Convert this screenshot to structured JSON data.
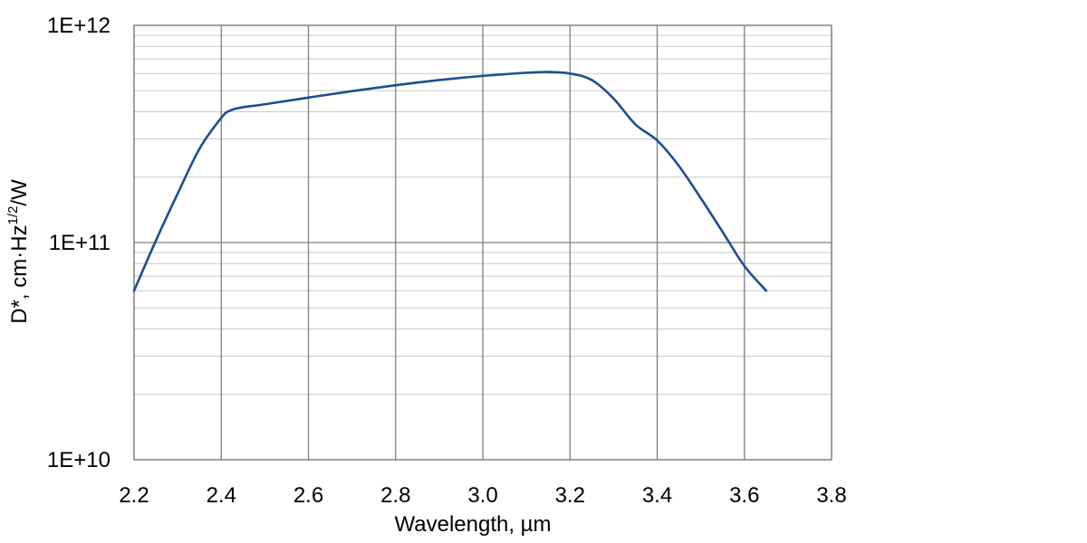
{
  "chart_data": {
    "type": "line",
    "title": "",
    "xlabel": "Wavelength, µm",
    "ylabel": {
      "prefix": "D*, cm·Hz",
      "superscript": "1/2",
      "suffix": "/W"
    },
    "xlim": [
      2.2,
      3.8
    ],
    "ylim": [
      10000000000.0,
      1000000000000.0
    ],
    "yscale": "log",
    "x_ticks": [
      2.2,
      2.4,
      2.6,
      2.8,
      3.0,
      3.2,
      3.4,
      3.6,
      3.8
    ],
    "x_tick_labels": [
      "2.2",
      "2.4",
      "2.6",
      "2.8",
      "3.0",
      "3.2",
      "3.4",
      "3.6",
      "3.8"
    ],
    "y_ticks": [
      10000000000.0,
      100000000000.0,
      1000000000000.0
    ],
    "y_tick_labels": [
      "1E+10",
      "1E+11",
      "1E+12"
    ],
    "grid": true,
    "legend": "none",
    "colors": {
      "line": "#1f4e8c",
      "major_grid": "#7f7f7f",
      "minor_grid": "#c8c8c8",
      "frame": "#7f7f7f"
    },
    "series": [
      {
        "x": [
          2.2,
          2.25,
          2.3,
          2.35,
          2.4,
          2.42,
          2.45,
          2.5,
          2.6,
          2.7,
          2.8,
          2.9,
          3.0,
          3.1,
          3.15,
          3.2,
          3.25,
          3.3,
          3.35,
          3.4,
          3.45,
          3.5,
          3.55,
          3.6,
          3.65
        ],
        "y": [
          60000000000.0,
          102000000000.0,
          168000000000.0,
          270000000000.0,
          375000000000.0,
          405000000000.0,
          420000000000.0,
          433000000000.0,
          465000000000.0,
          498000000000.0,
          530000000000.0,
          560000000000.0,
          585000000000.0,
          605000000000.0,
          610000000000.0,
          600000000000.0,
          560000000000.0,
          460000000000.0,
          350000000000.0,
          295000000000.0,
          225000000000.0,
          160000000000.0,
          112000000000.0,
          78000000000.0,
          60000000000.0
        ]
      }
    ]
  }
}
